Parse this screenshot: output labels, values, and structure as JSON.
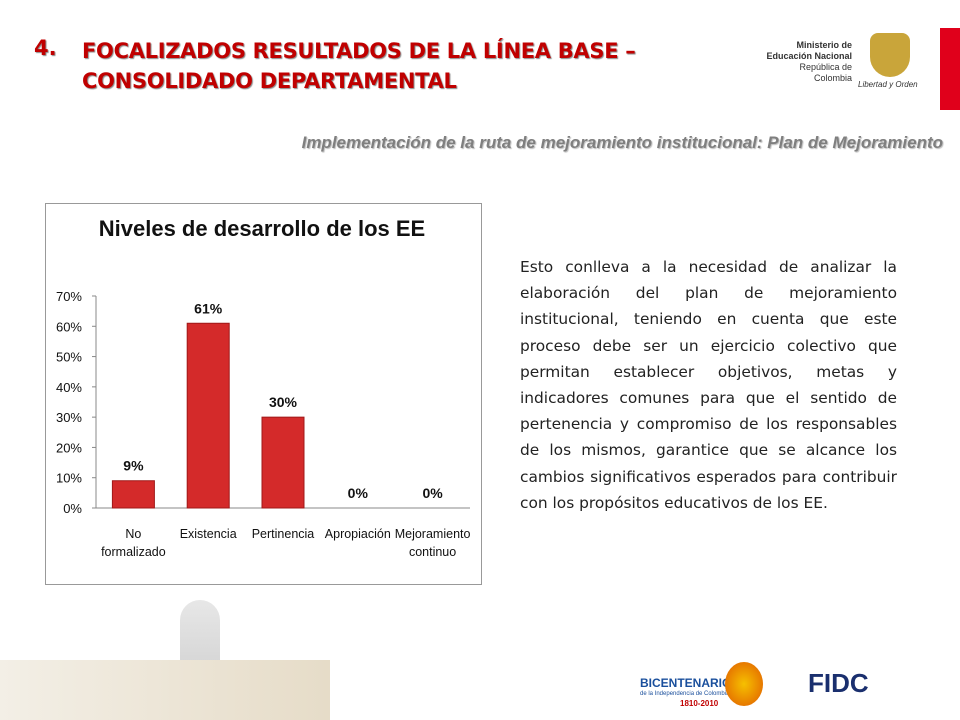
{
  "header": {
    "number": "4.",
    "title": "FOCALIZADOS RESULTADOS DE LA LÍNEA BASE – CONSOLIDADO DEPARTAMENTAL",
    "subtitle": "Implementación de la ruta de mejoramiento institucional: Plan de Mejoramiento"
  },
  "logos": {
    "ministry": [
      "Ministerio de",
      "Educación Nacional",
      "República de Colombia"
    ],
    "motto": "Libertad y Orden",
    "bicentenario": [
      "BICENTENARIO",
      "de la Independencia de Colombia",
      "1810-2010"
    ],
    "fidc": "FIDC"
  },
  "paragraph": "Esto conlleva a la necesidad de analizar la elaboración del plan de mejoramiento institucional, teniendo en cuenta que este proceso debe ser un ejercicio colectivo que permitan establecer objetivos, metas y indicadores comunes para que el sentido de pertenencia y compromiso de los responsables de los mismos, garantice que se alcance los cambios significativos esperados para contribuir con los propósitos educativos de los EE.",
  "chart_data": {
    "type": "bar",
    "title": "Niveles de desarrollo de los EE",
    "categories": [
      "No formalizado",
      "Existencia",
      "Pertinencia",
      "Apropiación",
      "Mejoramiento continuo"
    ],
    "values": [
      9,
      61,
      30,
      0,
      0
    ],
    "value_labels": [
      "9%",
      "61%",
      "30%",
      "0%",
      "0%"
    ],
    "color": "#d42a2a",
    "ylim": [
      0,
      70
    ],
    "yticks": [
      {
        "value": 0,
        "label": "0%"
      },
      {
        "value": 10,
        "label": "10%"
      },
      {
        "value": 20,
        "label": "20%"
      },
      {
        "value": 30,
        "label": "30%"
      },
      {
        "value": 40,
        "label": "40%"
      },
      {
        "value": 50,
        "label": "50%"
      },
      {
        "value": 60,
        "label": "60%"
      },
      {
        "value": 70,
        "label": "70%"
      }
    ],
    "grid": false
  }
}
